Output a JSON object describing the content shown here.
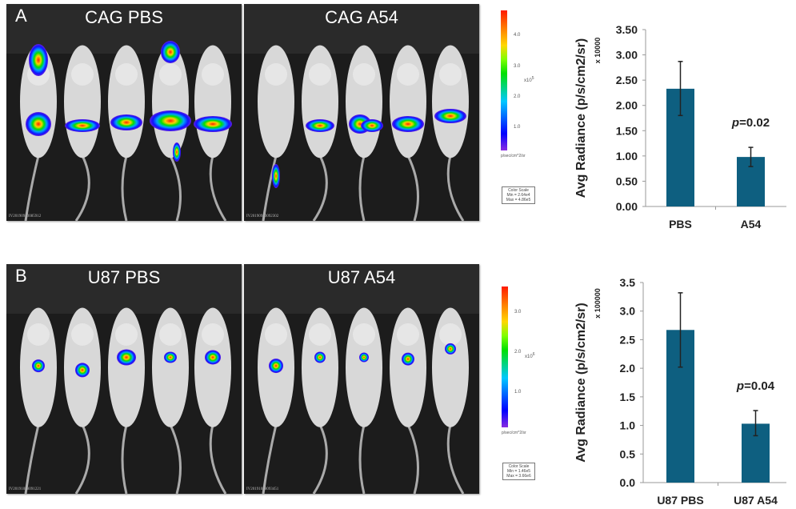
{
  "panels": [
    {
      "letter": "A",
      "images": [
        {
          "title": "CAG PBS",
          "id": "IV20190910085912"
        },
        {
          "title": "CAG A54",
          "id": "IV20190910092302"
        }
      ],
      "colorbar": {
        "ticks": [
          "4.0",
          "3.0",
          "2.0",
          "1.0"
        ],
        "multiplier": "x10",
        "exponent": "5",
        "units": "p/sec/cm^2/sr",
        "scale_title": "Color Scale",
        "min": "Min = 2.64e4",
        "max": "Max = 4.86e5"
      }
    },
    {
      "letter": "B",
      "images": [
        {
          "title": "U87 PBS",
          "id": "IV20191008091221"
        },
        {
          "title": "U87 A54",
          "id": "IV20191008093451"
        }
      ],
      "colorbar": {
        "ticks": [
          "3.0",
          "2.0",
          "1.0"
        ],
        "multiplier": "x10",
        "exponent": "6",
        "units": "p/sec/cm^2/sr",
        "scale_title": "Color Scale",
        "min": "Min = 1.46e5",
        "max": "Max = 3.66e6"
      }
    }
  ],
  "colors": {
    "bar": "#0e5f80",
    "axis": "#999999",
    "text": "#222222"
  },
  "chart_data": [
    {
      "type": "bar",
      "categories": [
        "PBS",
        "A54"
      ],
      "values": [
        2.33,
        0.98
      ],
      "error_low": [
        1.8,
        0.79
      ],
      "error_high": [
        2.87,
        1.17
      ],
      "ylabel": "Avg Radiance (p/s/cm2/sr)",
      "ymultiplier": "x 10000",
      "ylim": [
        0,
        3.5
      ],
      "yticks": [
        "0.00",
        "0.50",
        "1.00",
        "1.50",
        "2.00",
        "2.50",
        "3.00",
        "3.50"
      ],
      "annotation": {
        "prefix": "p",
        "text": "=0.02",
        "category": "A54"
      },
      "grid": false
    },
    {
      "type": "bar",
      "categories": [
        "U87 PBS",
        "U87 A54"
      ],
      "values": [
        2.67,
        1.03
      ],
      "error_low": [
        2.02,
        0.82
      ],
      "error_high": [
        3.32,
        1.26
      ],
      "ylabel": "Avg Radiance (p/s/cm2/sr)",
      "ymultiplier": "x 100000",
      "ylim": [
        0,
        3.5
      ],
      "yticks": [
        "0.0",
        "0.5",
        "1.0",
        "1.5",
        "2.0",
        "2.5",
        "3.0",
        "3.5"
      ],
      "annotation": {
        "prefix": "p",
        "text": "=0.04",
        "category": "U87 A54"
      },
      "grid": false
    }
  ]
}
